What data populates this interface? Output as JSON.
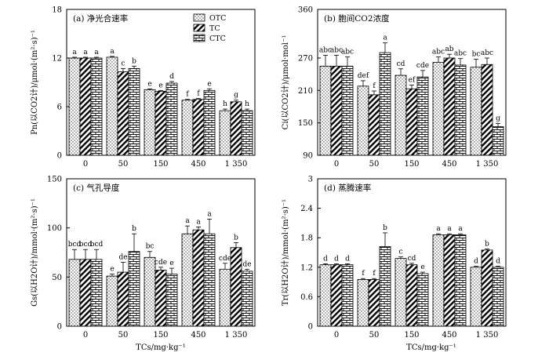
{
  "shared": {
    "xlabel": "TCs/mg·kg⁻¹",
    "legend": [
      "OTC",
      "TC",
      "CTC"
    ]
  },
  "chart_data": [
    {
      "type": "bar",
      "title": "(a) 净光合速率",
      "ylabel": "Pn(以CO2计)/μmol·(m²·s)⁻¹",
      "ylim": [
        0,
        18
      ],
      "yticks": [
        0,
        6,
        12,
        18
      ],
      "categories": [
        "0",
        "50",
        "150",
        "450",
        "1 350"
      ],
      "series": [
        {
          "name": "OTC",
          "values": [
            12.0,
            12.1,
            8.1,
            6.8,
            5.5
          ],
          "errors": [
            0.1,
            0.1,
            0.1,
            0.1,
            0.2
          ],
          "labels": [
            "a",
            "a",
            "e",
            "f",
            "h"
          ]
        },
        {
          "name": "TC",
          "values": [
            12.0,
            10.3,
            7.9,
            6.9,
            6.6
          ],
          "errors": [
            0.1,
            0.4,
            0.1,
            0.1,
            0.2
          ],
          "labels": [
            "a",
            "c",
            "e",
            "f",
            "g"
          ]
        },
        {
          "name": "CTC",
          "values": [
            12.0,
            10.7,
            8.9,
            8.0,
            5.5
          ],
          "errors": [
            0.1,
            0.3,
            0.2,
            0.2,
            0.2
          ],
          "labels": [
            "a",
            "b",
            "d",
            "e",
            "h"
          ]
        }
      ],
      "legend_position": "top-right"
    },
    {
      "type": "bar",
      "title": "(b) 胞间CO2浓度",
      "ylabel": "Ci(以CO2计)/μmol·mol⁻¹",
      "ylim": [
        90,
        360
      ],
      "yticks": [
        90,
        150,
        210,
        270,
        360
      ],
      "categories": [
        "0",
        "50",
        "150",
        "450",
        "1 350"
      ],
      "series": [
        {
          "name": "OTC",
          "values": [
            255,
            218,
            238,
            262,
            253
          ],
          "errors": [
            20,
            10,
            12,
            10,
            15
          ],
          "labels": [
            "abc",
            "def",
            "cd",
            "abc",
            "bc"
          ]
        },
        {
          "name": "TC",
          "values": [
            255,
            202,
            213,
            270,
            258
          ],
          "errors": [
            20,
            7,
            7,
            7,
            12
          ],
          "labels": [
            "abc",
            "f",
            "ef",
            "ab",
            "abc"
          ]
        },
        {
          "name": "CTC",
          "values": [
            255,
            280,
            235,
            257,
            143
          ],
          "errors": [
            17,
            18,
            12,
            12,
            6
          ],
          "labels": [
            "abc",
            "a",
            "cde",
            "abc",
            "g"
          ]
        }
      ]
    },
    {
      "type": "bar",
      "title": "(c) 气孔导度",
      "ylabel": "Gs(以H2O计)/mmol·(m²·s)⁻¹",
      "ylim": [
        0,
        150
      ],
      "yticks": [
        0,
        50,
        100,
        150
      ],
      "categories": [
        "0",
        "50",
        "150",
        "450",
        "1 350"
      ],
      "series": [
        {
          "name": "OTC",
          "values": [
            68,
            51,
            70,
            94,
            58
          ],
          "errors": [
            10,
            2,
            6,
            8,
            6
          ],
          "labels": [
            "bcd",
            "e",
            "bc",
            "a",
            "cde"
          ]
        },
        {
          "name": "TC",
          "values": [
            68,
            55,
            57,
            98,
            80
          ],
          "errors": [
            10,
            10,
            3,
            3,
            5
          ],
          "labels": [
            "bcd",
            "de",
            "cde",
            "a",
            "b"
          ]
        },
        {
          "name": "CTC",
          "values": [
            68,
            76,
            53,
            94,
            56
          ],
          "errors": [
            10,
            18,
            6,
            15,
            2
          ],
          "labels": [
            "bcd",
            "b",
            "e",
            "a",
            "de"
          ]
        }
      ]
    },
    {
      "type": "bar",
      "title": "(d) 蒸腾速率",
      "ylabel": "Tr(以H2O计)/mmol·(m²·s)⁻¹",
      "ylim": [
        0,
        3.0
      ],
      "yticks": [
        0,
        0.6,
        1.2,
        1.8,
        2.4,
        3.0
      ],
      "categories": [
        "0",
        "50",
        "150",
        "450",
        "1 350"
      ],
      "series": [
        {
          "name": "OTC",
          "values": [
            1.25,
            0.95,
            1.38,
            1.86,
            1.2
          ],
          "errors": [
            0.02,
            0.02,
            0.03,
            0.02,
            0.02
          ],
          "labels": [
            "d",
            "f",
            "c",
            "a",
            "d"
          ]
        },
        {
          "name": "TC",
          "values": [
            1.25,
            0.95,
            1.25,
            1.86,
            1.55
          ],
          "errors": [
            0.02,
            0.02,
            0.03,
            0.02,
            0.02
          ],
          "labels": [
            "d",
            "f",
            "cd",
            "a",
            "b"
          ]
        },
        {
          "name": "CTC",
          "values": [
            1.25,
            1.62,
            1.07,
            1.86,
            1.2
          ],
          "errors": [
            0.02,
            0.28,
            0.03,
            0.02,
            0.02
          ],
          "labels": [
            "d",
            "b",
            "e",
            "a",
            "d"
          ]
        }
      ]
    }
  ]
}
